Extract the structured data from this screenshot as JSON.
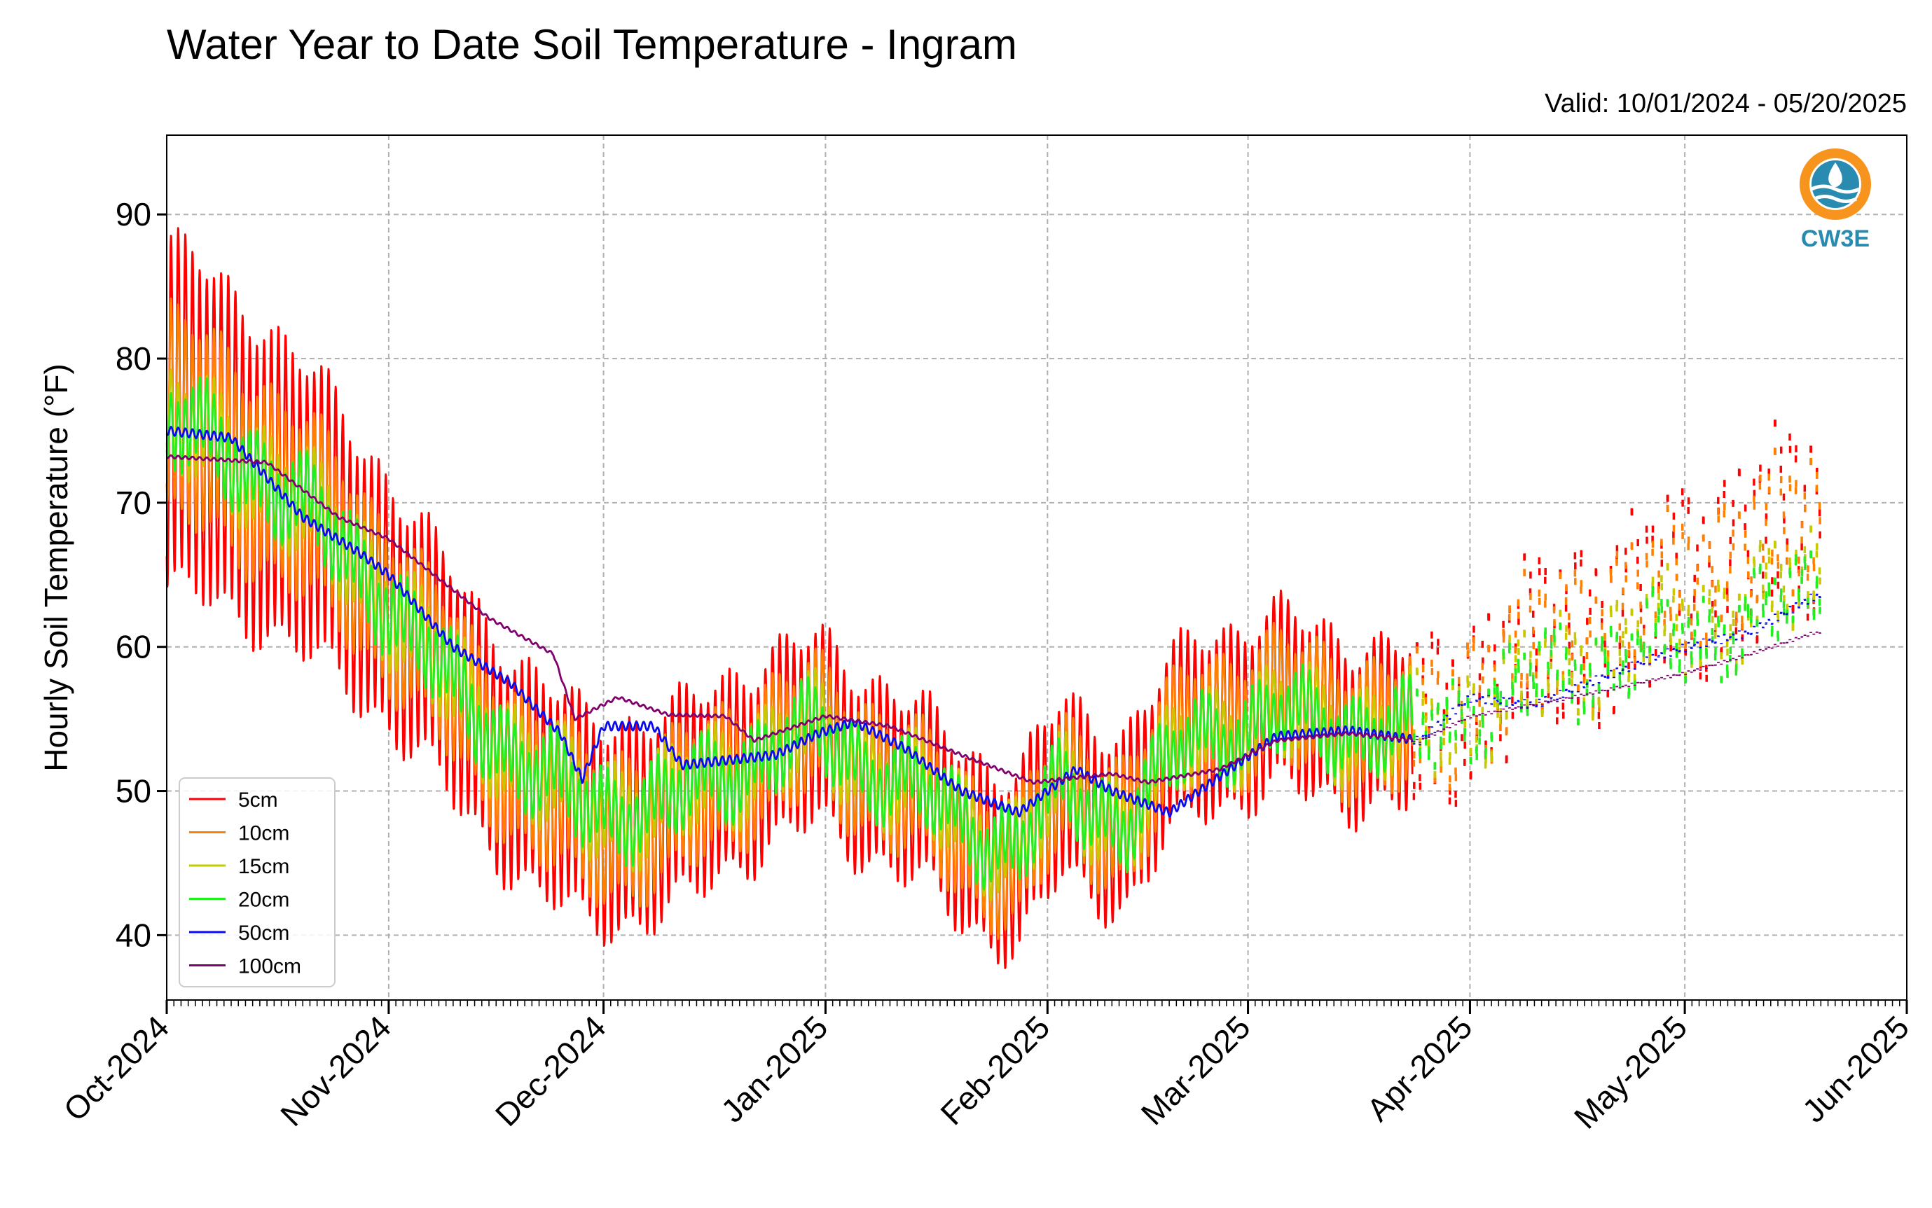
{
  "chart_data": {
    "type": "line",
    "title": "Water Year to Date Soil Temperature - Ingram",
    "subtitle": "Valid: 10/01/2024 - 05/20/2025",
    "ylabel": "Hourly Soil Temperature (°F)",
    "xlabel": "",
    "ylim": [
      35.5,
      95.5
    ],
    "xlim": [
      "2024-10-01",
      "2025-06-01"
    ],
    "grid": true,
    "legend_position": "lower-left",
    "x_tick_labels": [
      "Oct-2024",
      "Nov-2024",
      "Dec-2024",
      "Jan-2025",
      "Feb-2025",
      "Mar-2025",
      "Apr-2025",
      "May-2025",
      "Jun-2025"
    ],
    "x_tick_dates": [
      "2024-10-01",
      "2024-11-01",
      "2024-12-01",
      "2025-01-01",
      "2025-02-01",
      "2025-03-01",
      "2025-04-01",
      "2025-05-01",
      "2025-06-01"
    ],
    "y_ticks": [
      40,
      50,
      60,
      70,
      80,
      90
    ],
    "series": [
      {
        "name": "5cm",
        "color": "#ff0000",
        "mean": [
          [
            "2024-10-01",
            76
          ],
          [
            "2024-10-15",
            72
          ],
          [
            "2024-10-31",
            64
          ],
          [
            "2024-11-10",
            57
          ],
          [
            "2024-11-22",
            50
          ],
          [
            "2024-11-28",
            48
          ],
          [
            "2024-12-10",
            48
          ],
          [
            "2024-12-20",
            52
          ],
          [
            "2024-12-31",
            54
          ],
          [
            "2025-01-10",
            51
          ],
          [
            "2025-01-20",
            47
          ],
          [
            "2025-01-28",
            45
          ],
          [
            "2025-02-03",
            50
          ],
          [
            "2025-02-12",
            48
          ],
          [
            "2025-02-22",
            55
          ],
          [
            "2025-03-05",
            56
          ],
          [
            "2025-03-15",
            55
          ],
          [
            "2025-03-25",
            54
          ],
          [
            "2025-04-10",
            60
          ],
          [
            "2025-04-25",
            63
          ],
          [
            "2025-05-10",
            67
          ],
          [
            "2025-05-19",
            69
          ]
        ],
        "amp": [
          [
            "2024-10-01",
            12
          ],
          [
            "2024-10-20",
            10
          ],
          [
            "2024-11-05",
            8
          ],
          [
            "2024-12-01",
            7
          ],
          [
            "2025-01-15",
            6
          ],
          [
            "2025-02-15",
            6
          ],
          [
            "2025-03-05",
            6
          ],
          [
            "2025-04-01",
            5
          ],
          [
            "2025-05-15",
            6
          ]
        ]
      },
      {
        "name": "10cm",
        "color": "#ff8000",
        "mean": [
          [
            "2024-10-01",
            76
          ],
          [
            "2024-10-15",
            72
          ],
          [
            "2024-10-31",
            64
          ],
          [
            "2024-11-10",
            57
          ],
          [
            "2024-11-22",
            50
          ],
          [
            "2024-11-28",
            48
          ],
          [
            "2024-12-10",
            48
          ],
          [
            "2024-12-20",
            52
          ],
          [
            "2024-12-31",
            54
          ],
          [
            "2025-01-10",
            51
          ],
          [
            "2025-01-20",
            47
          ],
          [
            "2025-01-28",
            45
          ],
          [
            "2025-02-03",
            50
          ],
          [
            "2025-02-12",
            48
          ],
          [
            "2025-02-22",
            55
          ],
          [
            "2025-03-05",
            56
          ],
          [
            "2025-03-15",
            55
          ],
          [
            "2025-03-25",
            54
          ],
          [
            "2025-04-10",
            60
          ],
          [
            "2025-04-25",
            63
          ],
          [
            "2025-05-10",
            67
          ],
          [
            "2025-05-19",
            69
          ]
        ],
        "amp": [
          [
            "2024-10-01",
            7
          ],
          [
            "2024-11-05",
            5
          ],
          [
            "2025-01-15",
            4
          ],
          [
            "2025-04-01",
            4
          ],
          [
            "2025-05-15",
            4
          ]
        ]
      },
      {
        "name": "15cm",
        "color": "#c8c800",
        "mean": [
          [
            "2024-10-01",
            75.5
          ],
          [
            "2024-10-15",
            72
          ],
          [
            "2024-10-31",
            64
          ],
          [
            "2024-11-10",
            57
          ],
          [
            "2024-11-22",
            51
          ],
          [
            "2024-11-28",
            49
          ],
          [
            "2024-12-10",
            49
          ],
          [
            "2024-12-20",
            52
          ],
          [
            "2024-12-31",
            54
          ],
          [
            "2025-01-10",
            51
          ],
          [
            "2025-01-20",
            48
          ],
          [
            "2025-01-28",
            46
          ],
          [
            "2025-02-03",
            50
          ],
          [
            "2025-02-12",
            48
          ],
          [
            "2025-02-22",
            54
          ],
          [
            "2025-03-05",
            55
          ],
          [
            "2025-03-15",
            54.5
          ],
          [
            "2025-03-25",
            54
          ],
          [
            "2025-04-10",
            58
          ],
          [
            "2025-04-25",
            61
          ],
          [
            "2025-05-10",
            63
          ],
          [
            "2025-05-19",
            65
          ]
        ],
        "amp": [
          [
            "2024-10-01",
            3
          ],
          [
            "2024-11-05",
            3
          ],
          [
            "2025-01-15",
            2.5
          ],
          [
            "2025-05-15",
            2.5
          ]
        ]
      },
      {
        "name": "20cm",
        "color": "#22ee22",
        "mean": [
          [
            "2024-10-01",
            75.5
          ],
          [
            "2024-10-15",
            72
          ],
          [
            "2024-10-31",
            64
          ],
          [
            "2024-11-10",
            57
          ],
          [
            "2024-11-22",
            51
          ],
          [
            "2024-11-28",
            49
          ],
          [
            "2024-12-10",
            49
          ],
          [
            "2024-12-20",
            52
          ],
          [
            "2024-12-31",
            54
          ],
          [
            "2025-01-10",
            51
          ],
          [
            "2025-01-20",
            48
          ],
          [
            "2025-01-28",
            46
          ],
          [
            "2025-02-03",
            50
          ],
          [
            "2025-02-12",
            48
          ],
          [
            "2025-02-22",
            54
          ],
          [
            "2025-03-05",
            55
          ],
          [
            "2025-03-15",
            54.5
          ],
          [
            "2025-03-25",
            54
          ],
          [
            "2025-04-10",
            58
          ],
          [
            "2025-04-25",
            60
          ],
          [
            "2025-05-10",
            62
          ],
          [
            "2025-05-19",
            64
          ]
        ],
        "amp": [
          [
            "2024-10-01",
            2.5
          ],
          [
            "2025-01-15",
            2
          ],
          [
            "2025-05-15",
            2
          ]
        ]
      },
      {
        "name": "50cm",
        "color": "#0a0aee",
        "mean": [
          [
            "2024-10-01",
            75
          ],
          [
            "2024-10-10",
            74.5
          ],
          [
            "2024-10-20",
            69
          ],
          [
            "2024-10-28",
            66.5
          ],
          [
            "2024-11-01",
            65
          ],
          [
            "2024-11-10",
            60
          ],
          [
            "2024-11-18",
            57.5
          ],
          [
            "2024-11-25",
            54
          ],
          [
            "2024-11-28",
            50.8
          ],
          [
            "2024-12-01",
            54.5
          ],
          [
            "2024-12-08",
            54.5
          ],
          [
            "2024-12-12",
            51.8
          ],
          [
            "2024-12-25",
            52.5
          ],
          [
            "2024-12-31",
            54
          ],
          [
            "2025-01-05",
            54.8
          ],
          [
            "2025-01-12",
            53
          ],
          [
            "2025-01-20",
            50
          ],
          [
            "2025-01-28",
            48.5
          ],
          [
            "2025-02-05",
            51.5
          ],
          [
            "2025-02-10",
            50
          ],
          [
            "2025-02-18",
            48.5
          ],
          [
            "2025-02-25",
            51
          ],
          [
            "2025-03-05",
            53.8
          ],
          [
            "2025-03-15",
            54.2
          ],
          [
            "2025-03-25",
            53.5
          ],
          [
            "2025-04-01",
            56.5
          ],
          [
            "2025-04-10",
            56
          ],
          [
            "2025-04-20",
            58
          ],
          [
            "2025-04-28",
            59.5
          ],
          [
            "2025-05-01",
            60
          ],
          [
            "2025-05-10",
            61
          ],
          [
            "2025-05-19",
            63.5
          ]
        ],
        "amp": [
          [
            "2024-10-01",
            0.3
          ],
          [
            "2025-05-19",
            0.3
          ]
        ]
      },
      {
        "name": "100cm",
        "color": "#80006e",
        "mean": [
          [
            "2024-10-01",
            73.2
          ],
          [
            "2024-10-15",
            72.8
          ],
          [
            "2024-10-25",
            69
          ],
          [
            "2024-11-01",
            67.5
          ],
          [
            "2024-11-15",
            62
          ],
          [
            "2024-11-24",
            59.5
          ],
          [
            "2024-11-27",
            55
          ],
          [
            "2024-12-03",
            56.5
          ],
          [
            "2024-12-10",
            55.3
          ],
          [
            "2024-12-18",
            55.2
          ],
          [
            "2024-12-22",
            53.5
          ],
          [
            "2025-01-01",
            55.2
          ],
          [
            "2025-01-10",
            54.5
          ],
          [
            "2025-01-20",
            52.5
          ],
          [
            "2025-01-30",
            50.6
          ],
          [
            "2025-02-10",
            51.2
          ],
          [
            "2025-02-15",
            50.6
          ],
          [
            "2025-02-25",
            51.5
          ],
          [
            "2025-03-05",
            53.5
          ],
          [
            "2025-03-15",
            54
          ],
          [
            "2025-03-25",
            53.5
          ],
          [
            "2025-04-01",
            55.2
          ],
          [
            "2025-04-15",
            56.5
          ],
          [
            "2025-05-01",
            58.2
          ],
          [
            "2025-05-10",
            59.5
          ],
          [
            "2025-05-19",
            61
          ]
        ],
        "amp": [
          [
            "2024-10-01",
            0.1
          ],
          [
            "2025-05-19",
            0.1
          ]
        ]
      }
    ]
  },
  "logo": {
    "text": "CW3E",
    "color_ring": "#f7941d",
    "color_drop": "#2a8bb0"
  }
}
